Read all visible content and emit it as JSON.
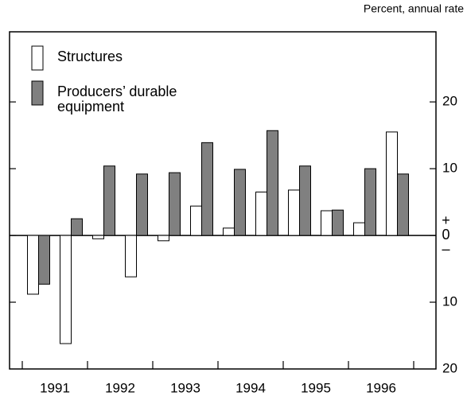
{
  "chart_data": {
    "type": "bar",
    "y_axis_label": "Percent, annual rate",
    "categories": [
      "1991",
      null,
      "1992",
      null,
      "1993",
      null,
      "1994",
      null,
      "1995",
      null,
      "1996",
      null
    ],
    "series": [
      {
        "name": "Structures",
        "color": "#ffffff",
        "values": [
          -8.8,
          -16.2,
          -0.5,
          -6.2,
          -0.8,
          4.4,
          1.1,
          6.5,
          6.8,
          3.7,
          1.9,
          15.5
        ]
      },
      {
        "name": "Producers’ durable equipment",
        "color": "#808080",
        "values": [
          -7.3,
          2.5,
          10.4,
          9.2,
          9.4,
          13.9,
          9.9,
          15.7,
          10.4,
          3.8,
          10.0,
          9.2
        ]
      }
    ],
    "ylim": [
      -20,
      30.5
    ],
    "yticks": [
      {
        "value": -20,
        "label": "20"
      },
      {
        "value": -10,
        "label": "10"
      },
      {
        "value": 0,
        "label": "+0–"
      },
      10,
      20
    ],
    "legend": "upper left"
  }
}
